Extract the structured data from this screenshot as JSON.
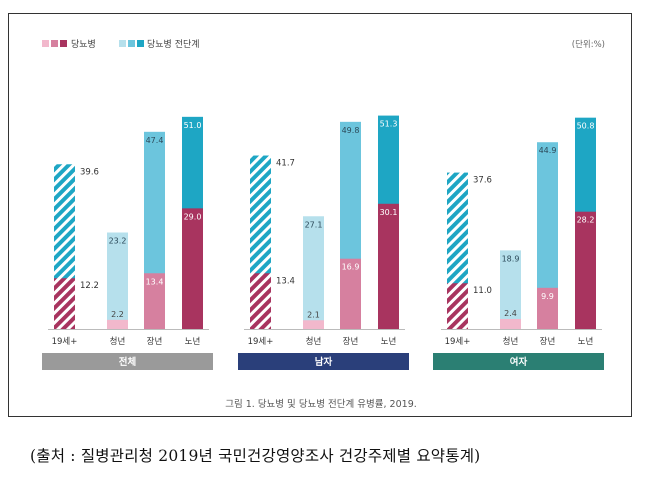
{
  "chart_data": {
    "type": "bar",
    "title": "그림 1. 당뇨병 및 당뇨병 전단계 유병률, 2019.",
    "unit_label": "(단위:%)",
    "legend": [
      {
        "name": "당뇨병",
        "colors": [
          "#f2b8cc",
          "#d6809f",
          "#a8345f"
        ]
      },
      {
        "name": "당뇨병 전단계",
        "colors": [
          "#b6e0ec",
          "#6cc5dd",
          "#1ea6c4"
        ]
      }
    ],
    "categories": [
      "19세+",
      "청년",
      "장년",
      "노년"
    ],
    "groups": [
      {
        "label": "전체",
        "color": "#9a9a9a",
        "diabetes": [
          12.2,
          2.2,
          13.4,
          29.0
        ],
        "prediabetes": [
          39.6,
          23.2,
          47.4,
          51.0
        ]
      },
      {
        "label": "남자",
        "color": "#2a3f7a",
        "diabetes": [
          13.4,
          2.1,
          16.9,
          30.1
        ],
        "prediabetes": [
          41.7,
          27.1,
          49.8,
          51.3
        ]
      },
      {
        "label": "여자",
        "color": "#2b7f73",
        "diabetes": [
          11.0,
          2.4,
          9.9,
          28.2
        ],
        "prediabetes": [
          37.6,
          18.9,
          44.9,
          50.8
        ]
      }
    ],
    "value_labels": {
      "diabetes": [
        [
          "12.2",
          "2.2",
          "13.4",
          "29.0"
        ],
        [
          "13.4",
          "2.1",
          "16.9",
          "30.1"
        ],
        [
          "11.0",
          "2.4",
          "9.9",
          "28.2"
        ]
      ],
      "prediabetes": [
        [
          "39.6",
          "23.2",
          "47.4",
          "51.0"
        ],
        [
          "41.7",
          "27.1",
          "49.8",
          "51.3"
        ],
        [
          "37.6",
          "18.9",
          "44.9",
          "50.8"
        ]
      ]
    },
    "ylim": [
      0,
      85
    ]
  },
  "source_text": "(출처 : 질병관리청 2019년 국민건강영양조사 건강주제별 요약통계)"
}
